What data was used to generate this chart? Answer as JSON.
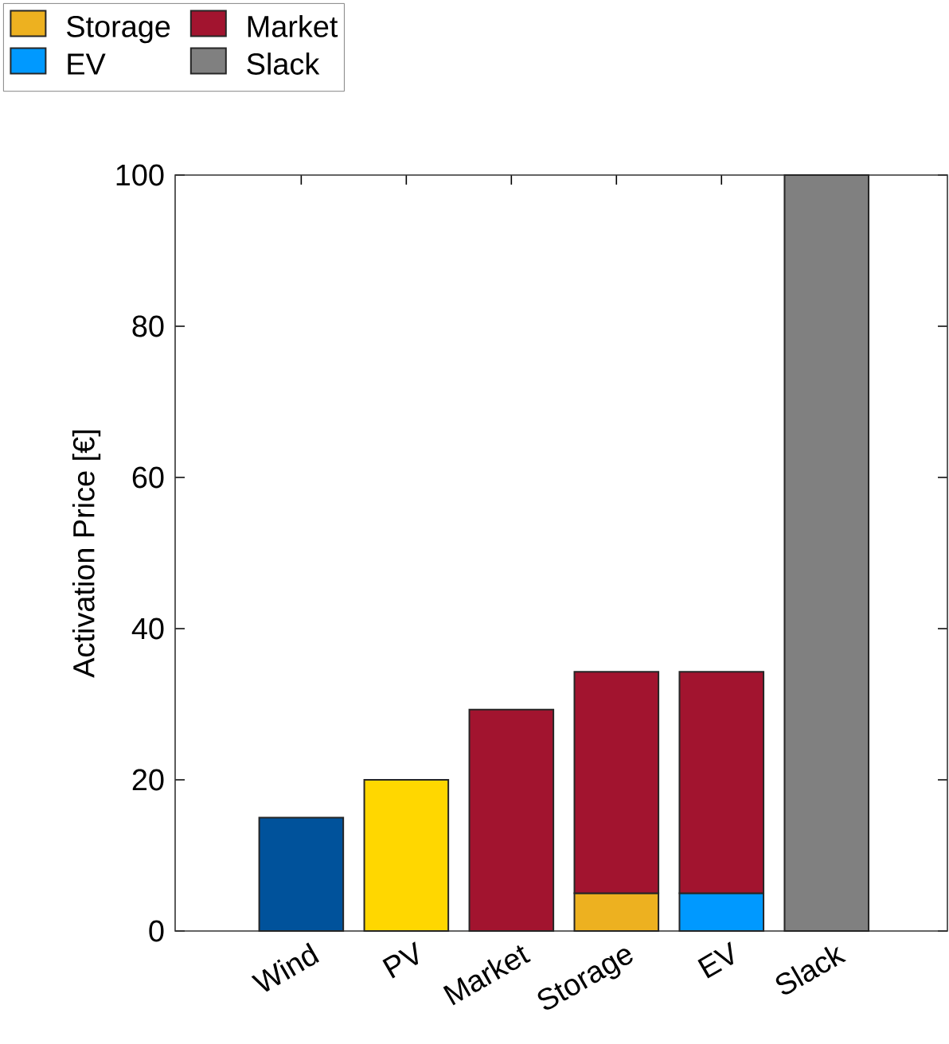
{
  "chart_data": {
    "type": "bar",
    "stacked": true,
    "ylabel": "Activation Price [€]",
    "categories": [
      "Wind",
      "PV",
      "Market",
      "Storage",
      "EV",
      "Slack"
    ],
    "series": [
      {
        "color": "#00529b",
        "values": [
          15,
          null,
          null,
          null,
          null,
          null
        ]
      },
      {
        "color": "#ffd700",
        "values": [
          null,
          20,
          null,
          null,
          null,
          null
        ]
      },
      {
        "name": "Storage",
        "color": "#edb120",
        "values": [
          null,
          null,
          null,
          5,
          null,
          null
        ]
      },
      {
        "name": "EV",
        "color": "#0099ff",
        "values": [
          null,
          null,
          null,
          null,
          5,
          null
        ]
      },
      {
        "name": "Market",
        "color": "#a2142f",
        "values": [
          null,
          null,
          29.3,
          29.3,
          29.3,
          null
        ]
      },
      {
        "name": "Slack",
        "color": "#808080",
        "values": [
          null,
          null,
          null,
          null,
          null,
          100
        ]
      }
    ],
    "ylim": [
      0,
      100
    ],
    "yticks": [
      0,
      20,
      40,
      60,
      80,
      100
    ],
    "grid": false,
    "legend": "top left"
  }
}
